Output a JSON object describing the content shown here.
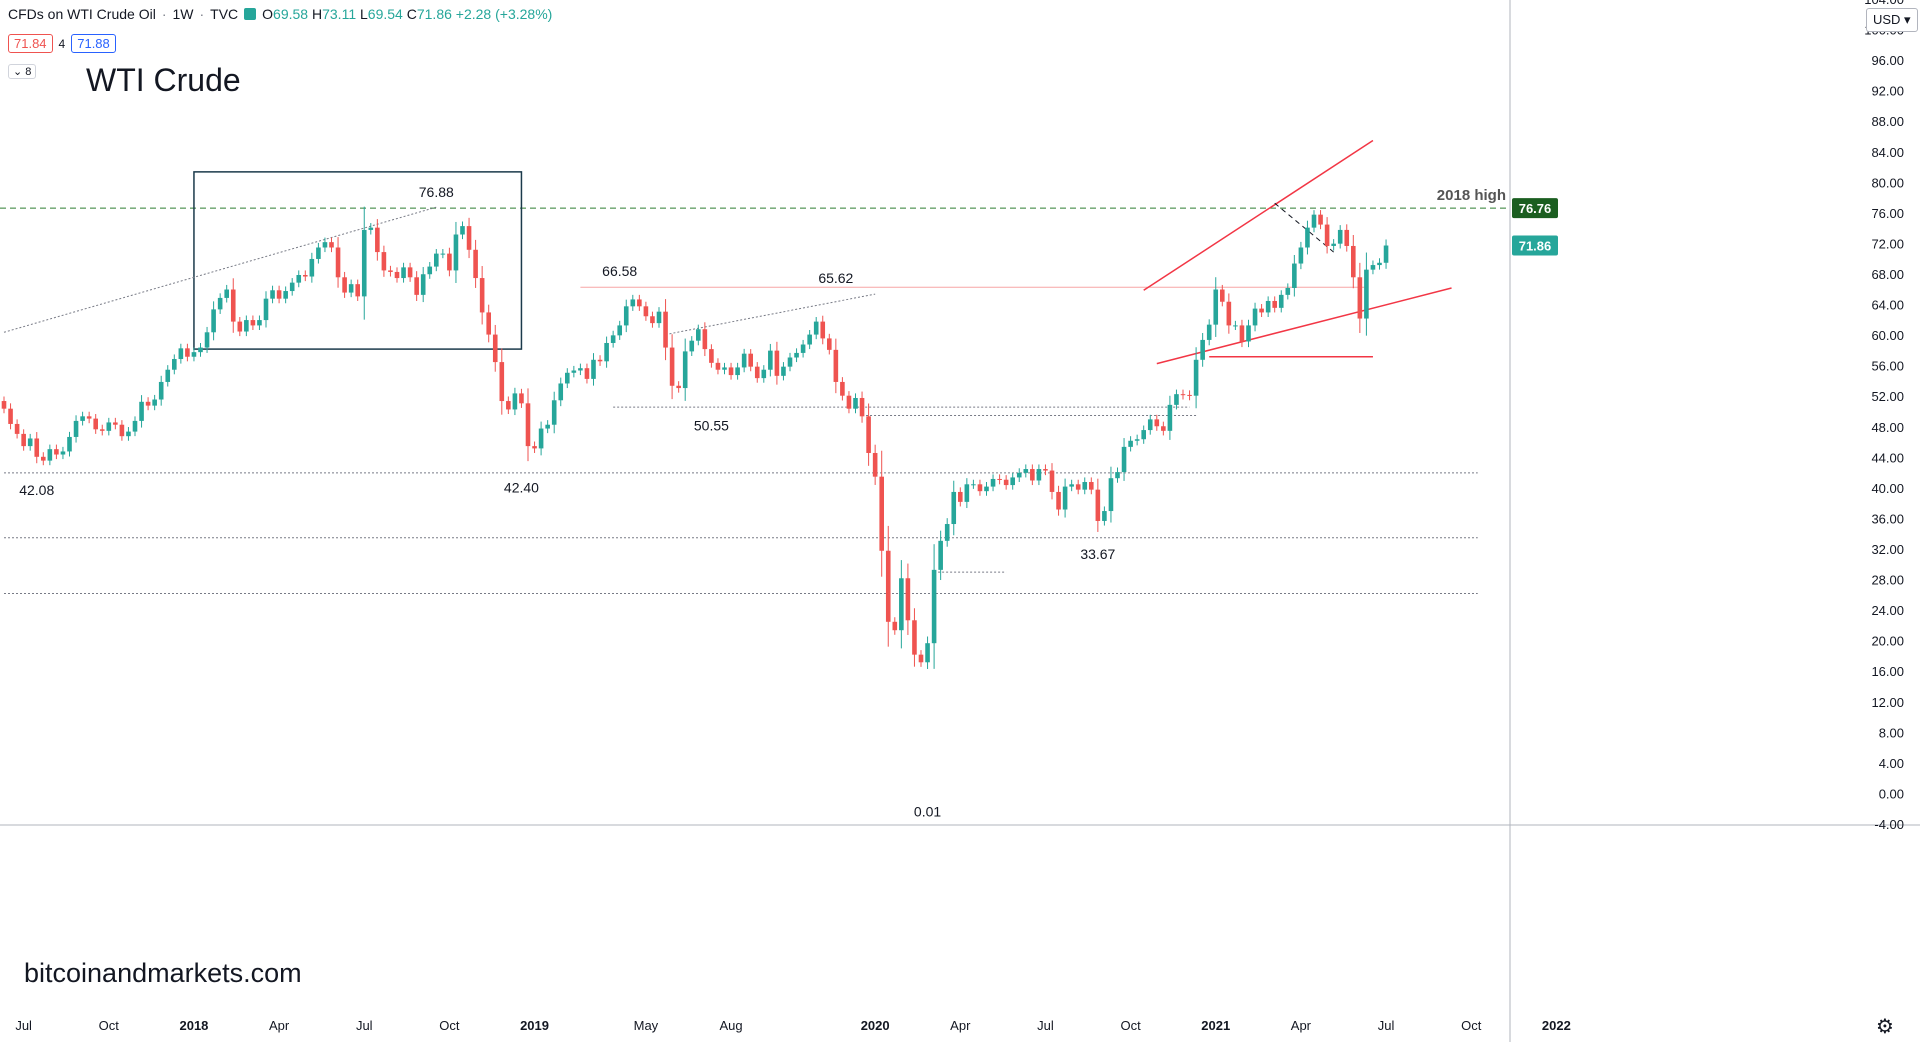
{
  "header": {
    "symbol": "CFDs on WTI Crude Oil",
    "interval": "1W",
    "source": "TVC",
    "open_label": "O",
    "open": "69.58",
    "high_label": "H",
    "high": "73.11",
    "low_label": "L",
    "low": "69.54",
    "close_label": "C",
    "close": "71.86",
    "change": "+2.28 (+3.28%)"
  },
  "quote": {
    "bid": "71.84",
    "spread": "4",
    "ask": "71.88"
  },
  "collapse_label": "⌄ 8",
  "title_text": "WTI Crude",
  "watermark": "bitcoinandmarkets.com",
  "currency": "USD ▾",
  "settings_icon": "gear-icon",
  "colors": {
    "up": "#26a69a",
    "down": "#ef5350",
    "trendline": "#f23645",
    "box": "#1b3a4b",
    "grid": "#787b86"
  },
  "chart_data": {
    "type": "candlestick",
    "title": "WTI Crude",
    "symbol": "CFDs on WTI Crude Oil",
    "interval": "1W",
    "ylim": [
      -4,
      104
    ],
    "y_ticks": [
      -4,
      0,
      4,
      8,
      12,
      16,
      20,
      24,
      28,
      32,
      36,
      40,
      44,
      48,
      52,
      56,
      60,
      64,
      68,
      72,
      76,
      80,
      84,
      88,
      92,
      96,
      100,
      104
    ],
    "x_ticks": [
      {
        "label": "Jul",
        "week": 3,
        "bold": false
      },
      {
        "label": "Oct",
        "week": 16,
        "bold": false
      },
      {
        "label": "2018",
        "week": 29,
        "bold": true
      },
      {
        "label": "Apr",
        "week": 42,
        "bold": false
      },
      {
        "label": "Jul",
        "week": 55,
        "bold": false
      },
      {
        "label": "Oct",
        "week": 68,
        "bold": false
      },
      {
        "label": "2019",
        "week": 81,
        "bold": true
      },
      {
        "label": "May",
        "week": 98,
        "bold": false
      },
      {
        "label": "Aug",
        "week": 111,
        "bold": false
      },
      {
        "label": "2020",
        "week": 133,
        "bold": true
      },
      {
        "label": "Apr",
        "week": 146,
        "bold": false
      },
      {
        "label": "Jul",
        "week": 159,
        "bold": false
      },
      {
        "label": "Oct",
        "week": 172,
        "bold": false
      },
      {
        "label": "2021",
        "week": 185,
        "bold": true
      },
      {
        "label": "Apr",
        "week": 198,
        "bold": false
      },
      {
        "label": "Jul",
        "week": 211,
        "bold": false
      },
      {
        "label": "Oct",
        "week": 224,
        "bold": false
      },
      {
        "label": "2022",
        "week": 237,
        "bold": true
      }
    ],
    "closes": [
      50.5,
      48.5,
      47.2,
      45.6,
      46.6,
      44.2,
      43.7,
      45.2,
      44.5,
      44.9,
      46.8,
      48.9,
      49.5,
      49.2,
      47.8,
      47.6,
      48.7,
      48.4,
      46.9,
      47.5,
      48.9,
      51.4,
      50.9,
      51.7,
      54.0,
      55.6,
      57.0,
      58.4,
      57.3,
      57.9,
      58.5,
      60.5,
      63.5,
      65.0,
      66.1,
      61.9,
      60.6,
      62.1,
      61.4,
      62.1,
      64.9,
      66.0,
      64.9,
      65.9,
      67.0,
      68.0,
      67.8,
      70.1,
      71.6,
      72.3,
      71.6,
      67.7,
      65.7,
      66.8,
      65.2,
      73.9,
      74.2,
      71.0,
      68.6,
      68.4,
      67.6,
      69.0,
      67.7,
      65.4,
      68.1,
      69.1,
      70.8,
      70.8,
      68.6,
      73.3,
      74.4,
      71.3,
      67.6,
      63.1,
      60.2,
      56.6,
      51.5,
      50.4,
      52.5,
      51.2,
      45.6,
      45.3,
      47.9,
      48.4,
      51.6,
      53.8,
      55.2,
      55.5,
      55.8,
      54.4,
      56.9,
      56.7,
      59.1,
      60.1,
      61.4,
      63.9,
      64.8,
      63.9,
      62.6,
      61.7,
      63.2,
      58.5,
      53.5,
      53.2,
      58.0,
      59.4,
      60.9,
      58.3,
      56.5,
      55.6,
      55.9,
      54.9,
      55.9,
      57.7,
      56.0,
      54.5,
      55.6,
      58.1,
      54.8,
      56.0,
      57.2,
      57.8,
      58.9,
      60.2,
      61.9,
      59.7,
      58.2,
      54.0,
      52.2,
      50.5,
      51.9,
      49.5,
      44.7,
      41.6,
      31.9,
      22.6,
      21.5,
      28.3,
      22.8,
      18.3,
      17.3,
      19.8,
      29.4,
      33.2,
      35.4,
      39.6,
      38.3,
      40.6,
      40.6,
      39.7,
      40.3,
      41.3,
      41.2,
      40.5,
      41.5,
      42.1,
      42.6,
      41.1,
      42.6,
      42.4,
      39.6,
      37.3,
      40.3,
      40.6,
      39.9,
      40.9,
      39.9,
      35.8,
      37.1,
      41.4,
      42.2,
      45.5,
      46.3,
      46.5,
      47.7,
      49.1,
      48.2,
      47.6,
      51.0,
      52.4,
      52.3,
      52.2,
      56.9,
      59.5,
      61.5,
      66.1,
      64.5,
      61.4,
      61.4,
      59.3,
      61.4,
      63.6,
      63.1,
      64.6,
      63.7,
      65.4,
      66.3,
      69.5,
      71.6,
      74.2,
      75.9,
      74.6,
      71.8,
      72.1,
      73.9,
      71.8,
      67.7,
      62.3,
      68.7,
      69.3,
      69.6,
      71.86
    ],
    "annotations": [
      {
        "text": "42.08",
        "week": 5,
        "price": 42.08,
        "position": "below"
      },
      {
        "text": "76.88",
        "week": 66,
        "price": 76.88,
        "position": "above"
      },
      {
        "text": "42.40",
        "week": 79,
        "price": 42.4,
        "position": "below"
      },
      {
        "text": "66.58",
        "week": 94,
        "price": 66.58,
        "position": "above"
      },
      {
        "text": "50.55",
        "week": 108,
        "price": 50.55,
        "position": "below"
      },
      {
        "text": "65.62",
        "week": 127,
        "price": 65.62,
        "position": "above"
      },
      {
        "text": "0.01",
        "week": 141,
        "price": 0.01,
        "position": "below"
      },
      {
        "text": "33.67",
        "week": 167,
        "price": 33.67,
        "position": "below"
      }
    ],
    "horizontal_levels": [
      {
        "label": "2018 high",
        "price": 76.76,
        "style": "dashed-green"
      },
      {
        "price": 66.4,
        "style": "red-thin",
        "from_week": 88,
        "to_week": 208
      },
      {
        "price": 57.3,
        "style": "red",
        "from_week": 184,
        "to_week": 209
      },
      {
        "price": 50.7,
        "style": "gray-dotted",
        "from_week": 93,
        "to_week": 181
      },
      {
        "price": 49.6,
        "style": "gray-dotted",
        "from_week": 131,
        "to_week": 182
      },
      {
        "price": 42.1,
        "style": "gray-dotted",
        "from_week": 0,
        "to_week": 225
      },
      {
        "price": 33.6,
        "style": "gray-dotted",
        "from_week": 0,
        "to_week": 225
      },
      {
        "price": 26.3,
        "style": "gray-dotted",
        "from_week": 0,
        "to_week": 225
      },
      {
        "price": 29.1,
        "style": "gray-dotted",
        "from_week": 142,
        "to_week": 153
      }
    ],
    "trendlines": [
      {
        "from": [
          0,
          60.5
        ],
        "to": [
          66,
          76.88
        ],
        "style": "gray-dotted"
      },
      {
        "from": [
          101,
          60.2
        ],
        "to": [
          133,
          65.5
        ],
        "style": "gray-dotted"
      },
      {
        "from": [
          174,
          66.0
        ],
        "to": [
          209,
          85.6
        ],
        "style": "red"
      },
      {
        "from": [
          176,
          56.4
        ],
        "to": [
          221,
          66.3
        ],
        "style": "red"
      },
      {
        "from": [
          194,
          77.4
        ],
        "to": [
          203,
          71.0
        ],
        "style": "black-dashed"
      }
    ],
    "rectangle": {
      "from_week": 29,
      "to_week": 79,
      "price_top": 81.5,
      "price_bottom": 58.3
    },
    "price_labels": [
      {
        "text": "76.76",
        "price": 76.76,
        "color": "#1b5e20"
      },
      {
        "text": "71.86",
        "price": 71.86,
        "color": "#26a69a"
      }
    ]
  }
}
